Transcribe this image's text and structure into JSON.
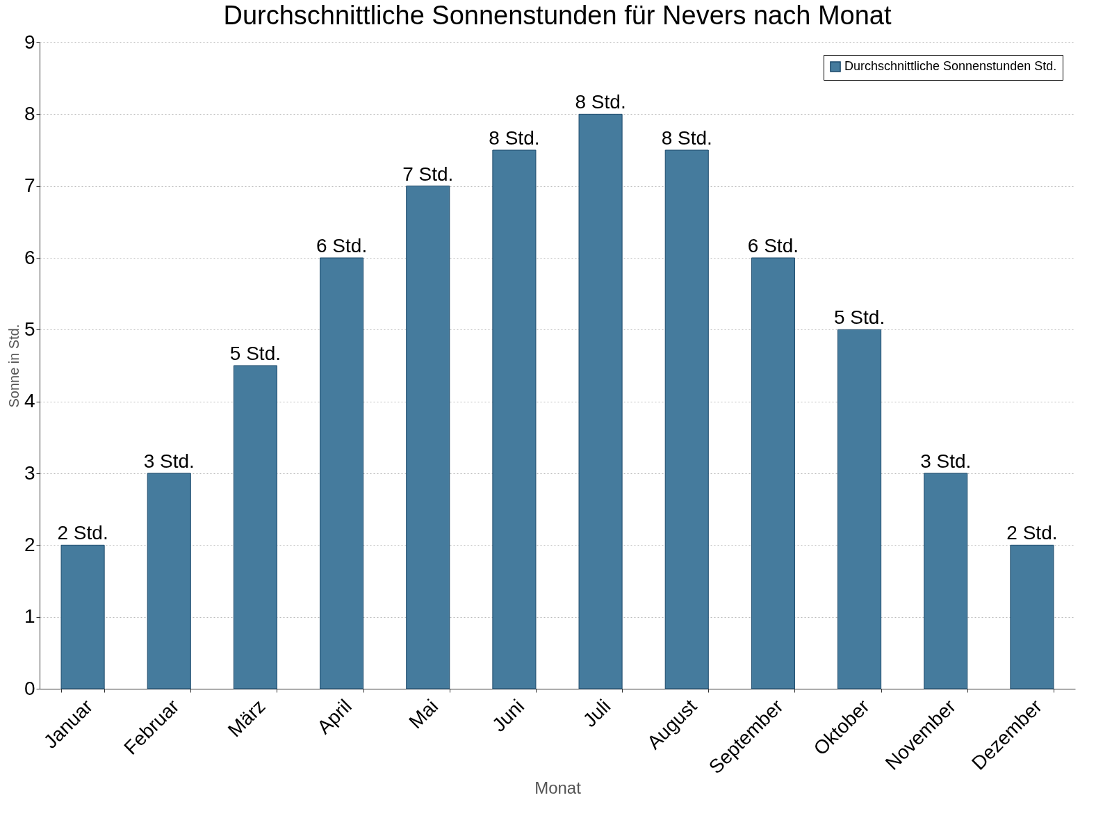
{
  "chart_data": {
    "type": "bar",
    "title": "Durchschnittliche Sonnenstunden für Nevers nach Monat",
    "xlabel": "Monat",
    "ylabel": "Sonne in Std.",
    "categories": [
      "Januar",
      "Februar",
      "März",
      "April",
      "Mai",
      "Juni",
      "Juli",
      "August",
      "September",
      "Oktober",
      "November",
      "Dezember"
    ],
    "series": [
      {
        "name": "Durchschnittliche Sonnenstunden Std.",
        "color": "#457b9d",
        "values": [
          2,
          3,
          4.5,
          6,
          7,
          7.5,
          8,
          7.5,
          6,
          5,
          3,
          2
        ],
        "value_labels": [
          "2 Std.",
          "3 Std.",
          "5 Std.",
          "6 Std.",
          "7 Std.",
          "8 Std.",
          "8 Std.",
          "8 Std.",
          "6 Std.",
          "5 Std.",
          "3 Std.",
          "2 Std."
        ]
      }
    ],
    "ylim": [
      0,
      9
    ],
    "yticks": [
      0,
      1,
      2,
      3,
      4,
      5,
      6,
      7,
      8,
      9
    ],
    "grid": "y",
    "legend": "top right"
  }
}
